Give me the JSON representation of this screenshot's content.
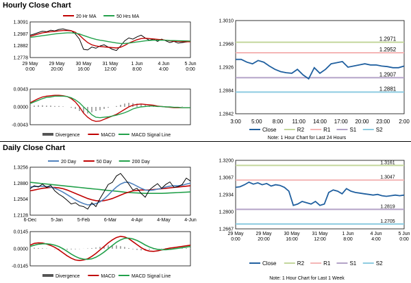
{
  "hourly": {
    "title": "Hourly Close Chart",
    "note": "Note: 1 Hour Chart for Last 24 Hours"
  },
  "daily": {
    "title": "Daily Close Chart",
    "note": "Note: 1 Hour Chart for Last 1 Week"
  },
  "colors": {
    "price": "#000000",
    "ma_short": "#c00000",
    "ma_long": "#22a04a",
    "ma_20day": "#4f81bd",
    "close": "#1f5f9f",
    "r2": "#c3d69b",
    "r1": "#f4b5b5",
    "s1": "#b3a2c7",
    "s2": "#8ccbe0",
    "divergence": "#555555",
    "macd": "#c00000",
    "signal": "#22a04a"
  },
  "chart_data": [
    {
      "id": "hourly_price",
      "type": "line",
      "legend": [
        "20 Hr MA",
        "50 Hrs MA"
      ],
      "yticks": [
        "1.3091",
        "1.2987",
        "1.2882",
        "1.2778"
      ],
      "ylim": [
        1.2778,
        1.3091
      ],
      "xticks": [
        "29 May\n0:00",
        "29 May\n20:00",
        "30 May\n16:00",
        "31 May\n12:00",
        "1 Jun\n8:00",
        "4 Jun\n4:00",
        "5 Jun\n0:00"
      ],
      "series": [
        {
          "name": "Close",
          "values": [
            1.2975,
            1.2985,
            1.2998,
            1.301,
            1.3005,
            1.3018,
            1.3012,
            1.3025,
            1.303,
            1.302,
            1.3015,
            1.2985,
            1.294,
            1.285,
            1.2845,
            1.287,
            1.286,
            1.288,
            1.289,
            1.287,
            1.285,
            1.284,
            1.288,
            1.2925,
            1.295,
            1.294,
            1.296,
            1.2975,
            1.295,
            1.293,
            1.294,
            1.292,
            1.294,
            1.2925,
            1.291,
            1.292,
            1.2905,
            1.291,
            1.2915,
            1.292
          ]
        },
        {
          "name": "20 Hr MA",
          "values": [
            1.2965,
            1.2975,
            1.2985,
            1.2995,
            1.3,
            1.3005,
            1.3008,
            1.3012,
            1.3015,
            1.3015,
            1.3013,
            1.3,
            1.2975,
            1.294,
            1.291,
            1.289,
            1.288,
            1.2875,
            1.2872,
            1.2868,
            1.2865,
            1.2862,
            1.2868,
            1.2885,
            1.2905,
            1.292,
            1.2935,
            1.2945,
            1.2948,
            1.2945,
            1.2942,
            1.2938,
            1.2935,
            1.293,
            1.2925,
            1.2922,
            1.292,
            1.2918,
            1.2917,
            1.2917
          ]
        },
        {
          "name": "50 Hrs MA",
          "values": [
            1.2955,
            1.296,
            1.2965,
            1.297,
            1.2975,
            1.298,
            1.2985,
            1.299,
            1.2992,
            1.2995,
            1.2995,
            1.2992,
            1.2985,
            1.2972,
            1.296,
            1.2948,
            1.2938,
            1.293,
            1.2925,
            1.2918,
            1.2912,
            1.2906,
            1.2902,
            1.2902,
            1.2905,
            1.291,
            1.2915,
            1.292,
            1.2925,
            1.2928,
            1.293,
            1.293,
            1.293,
            1.293,
            1.2928,
            1.2927,
            1.2926,
            1.2925,
            1.2924,
            1.2923
          ]
        }
      ]
    },
    {
      "id": "hourly_macd",
      "type": "line",
      "yticks": [
        "0.0043",
        "0.0000",
        "-0.0043"
      ],
      "ylim": [
        -0.0043,
        0.0043
      ],
      "legend": [
        "Divergence",
        "MACD",
        "MACD Signal Line"
      ],
      "series": [
        {
          "name": "Divergence",
          "values": [
            0.0002,
            0.0003,
            0.0004,
            0.0004,
            0.0003,
            0.0003,
            0.0002,
            0.0002,
            0.0001,
            0.0,
            -0.0002,
            -0.0005,
            -0.001,
            -0.0015,
            -0.0016,
            -0.0013,
            -0.001,
            -0.0008,
            -0.0005,
            -0.0002,
            0.0,
            0.0002,
            0.0005,
            0.0008,
            0.001,
            0.0009,
            0.0008,
            0.0007,
            0.0005,
            0.0003,
            0.0002,
            0.0001,
            0.0,
            0.0,
            -0.0001,
            0.0,
            0.0,
            0.0001,
            0.0,
            0.0
          ]
        },
        {
          "name": "MACD",
          "values": [
            0.001,
            0.0015,
            0.002,
            0.0024,
            0.0026,
            0.0027,
            0.0028,
            0.0028,
            0.0027,
            0.0025,
            0.002,
            0.0012,
            0.0,
            -0.0015,
            -0.0025,
            -0.0032,
            -0.0035,
            -0.0034,
            -0.003,
            -0.0026,
            -0.0022,
            -0.0018,
            -0.0012,
            -0.0006,
            0.0,
            0.0004,
            0.0006,
            0.0007,
            0.0006,
            0.0005,
            0.0004,
            0.0002,
            0.0001,
            0.0,
            -0.0001,
            -0.0002,
            -0.0002,
            -0.0002,
            -0.0002,
            -0.0002
          ]
        },
        {
          "name": "MACD Signal Line",
          "values": [
            0.0008,
            0.0012,
            0.0016,
            0.002,
            0.0023,
            0.0024,
            0.0026,
            0.0026,
            0.0026,
            0.0025,
            0.0022,
            0.0017,
            0.001,
            0.0,
            -0.0009,
            -0.0019,
            -0.0025,
            -0.0026,
            -0.0025,
            -0.0024,
            -0.0022,
            -0.002,
            -0.0017,
            -0.0014,
            -0.001,
            -0.0005,
            -0.0002,
            0.0,
            0.0001,
            0.0002,
            0.0002,
            0.0001,
            0.0001,
            0.0,
            0.0,
            -0.0001,
            -0.0001,
            -0.0002,
            -0.0002,
            -0.0002
          ]
        }
      ]
    },
    {
      "id": "hourly_levels",
      "type": "line",
      "yticks": [
        "1.3010",
        "1.2968",
        "1.2926",
        "1.2884",
        "1.2842"
      ],
      "ylim": [
        1.2842,
        1.301
      ],
      "xticks": [
        "3:00",
        "5:00",
        "8:00",
        "11:00",
        "14:00",
        "17:00",
        "20:00",
        "23:00",
        "2:00"
      ],
      "levels": [
        {
          "name": "R2",
          "value": 1.2971,
          "label": "1.2971"
        },
        {
          "name": "R1",
          "value": 1.2952,
          "label": "1.2952"
        },
        {
          "name": "S1",
          "value": 1.2907,
          "label": "1.2907"
        },
        {
          "name": "S2",
          "value": 1.2881,
          "label": "1.2881"
        }
      ],
      "legend": [
        "Close",
        "R2",
        "R1",
        "S1",
        "S2"
      ],
      "series": [
        {
          "name": "Close",
          "values": [
            1.294,
            1.294,
            1.2935,
            1.2932,
            1.2938,
            1.2935,
            1.2928,
            1.2922,
            1.2918,
            1.2916,
            1.2915,
            1.2922,
            1.2912,
            1.2905,
            1.2925,
            1.2915,
            1.2922,
            1.2932,
            1.2934,
            1.2936,
            1.2926,
            1.2928,
            1.293,
            1.2932,
            1.293,
            1.293,
            1.2928,
            1.2927,
            1.2925,
            1.2925,
            1.2928
          ]
        }
      ]
    },
    {
      "id": "daily_price",
      "type": "line",
      "legend": [
        "20 Day",
        "50 Day",
        "200 Day"
      ],
      "yticks": [
        "1.3256",
        "1.2880",
        "1.2504",
        "1.2128"
      ],
      "ylim": [
        1.2128,
        1.3256
      ],
      "xticks": [
        "6-Dec",
        "5-Jan",
        "5-Feb",
        "6-Mar",
        "4-Apr",
        "4-May",
        "4-Jun"
      ],
      "series": [
        {
          "name": "Close",
          "values": [
            1.275,
            1.282,
            1.279,
            1.286,
            1.278,
            1.283,
            1.27,
            1.262,
            1.256,
            1.248,
            1.239,
            1.242,
            1.235,
            1.233,
            1.227,
            1.242,
            1.233,
            1.252,
            1.268,
            1.285,
            1.29,
            1.305,
            1.311,
            1.299,
            1.286,
            1.272,
            1.276,
            1.264,
            1.255,
            1.272,
            1.28,
            1.287,
            1.276,
            1.285,
            1.291,
            1.278,
            1.28,
            1.285,
            1.3,
            1.293
          ]
        },
        {
          "name": "20 Day",
          "values": [
            1.279,
            1.28,
            1.2805,
            1.281,
            1.28,
            1.279,
            1.276,
            1.272,
            1.267,
            1.261,
            1.255,
            1.249,
            1.244,
            1.24,
            1.237,
            1.238,
            1.24,
            1.244,
            1.251,
            1.26,
            1.27,
            1.279,
            1.286,
            1.29,
            1.29,
            1.286,
            1.281,
            1.276,
            1.272,
            1.271,
            1.272,
            1.274,
            1.276,
            1.279,
            1.281,
            1.282,
            1.282,
            1.283,
            1.286,
            1.288
          ]
        },
        {
          "name": "50 Day",
          "values": [
            1.27,
            1.272,
            1.274,
            1.276,
            1.277,
            1.278,
            1.278,
            1.277,
            1.275,
            1.272,
            1.268,
            1.264,
            1.26,
            1.256,
            1.252,
            1.249,
            1.247,
            1.246,
            1.247,
            1.249,
            1.252,
            1.256,
            1.26,
            1.264,
            1.267,
            1.27,
            1.271,
            1.272,
            1.272,
            1.272,
            1.273,
            1.274,
            1.275,
            1.276,
            1.277,
            1.278,
            1.279,
            1.28,
            1.281,
            1.282
          ]
        },
        {
          "name": "200 Day",
          "values": [
            1.29,
            1.289,
            1.288,
            1.287,
            1.286,
            1.285,
            1.284,
            1.283,
            1.282,
            1.281,
            1.28,
            1.279,
            1.278,
            1.277,
            1.276,
            1.275,
            1.274,
            1.273,
            1.272,
            1.271,
            1.27,
            1.269,
            1.268,
            1.267,
            1.266,
            1.2655,
            1.265,
            1.2645,
            1.264,
            1.264,
            1.264,
            1.264,
            1.264,
            1.2645,
            1.265,
            1.2655,
            1.266,
            1.2665,
            1.267,
            1.2675
          ]
        }
      ]
    },
    {
      "id": "daily_macd",
      "type": "line",
      "yticks": [
        "0.0145",
        "0.0000",
        "-0.0145"
      ],
      "ylim": [
        -0.0145,
        0.0145
      ],
      "legend": [
        "Divergence",
        "MACD",
        "MACD Signal Line"
      ],
      "series": [
        {
          "name": "Divergence",
          "values": [
            0.0005,
            0.0008,
            0.0006,
            0.0004,
            0.0002,
            -0.0001,
            -0.0003,
            -0.0005,
            -0.0007,
            -0.0008,
            -0.0006,
            -0.0004,
            -0.0002,
            0.0001,
            0.0003,
            0.0006,
            0.001,
            0.0015,
            0.0022,
            0.0028,
            0.003,
            0.0028,
            0.0022,
            0.0015,
            0.0006,
            -0.0004,
            -0.001,
            -0.0014,
            -0.0012,
            -0.0008,
            -0.0004,
            0.0,
            0.0002,
            0.0004,
            0.0005,
            0.0006,
            0.0005,
            0.0004,
            0.0005,
            0.0006
          ]
        },
        {
          "name": "MACD",
          "values": [
            0.003,
            0.0045,
            0.005,
            0.0048,
            0.004,
            0.0028,
            0.0012,
            -0.001,
            -0.0035,
            -0.006,
            -0.008,
            -0.0095,
            -0.01,
            -0.0095,
            -0.0085,
            -0.0065,
            -0.004,
            -0.001,
            0.002,
            0.005,
            0.0075,
            0.0095,
            0.0105,
            0.01,
            0.0085,
            0.006,
            0.0035,
            0.001,
            -0.001,
            -0.002,
            -0.0022,
            -0.0018,
            -0.001,
            -0.0002,
            0.0005,
            0.001,
            0.0015,
            0.002,
            0.0025,
            0.003
          ]
        },
        {
          "name": "MACD Signal Line",
          "values": [
            0.002,
            0.003,
            0.0038,
            0.0042,
            0.0042,
            0.0038,
            0.003,
            0.0018,
            0.0,
            -0.0022,
            -0.0045,
            -0.0065,
            -0.008,
            -0.0088,
            -0.009,
            -0.0085,
            -0.0072,
            -0.0052,
            -0.0028,
            0.0,
            0.0028,
            0.0055,
            0.0075,
            0.0088,
            0.009,
            0.0083,
            0.007,
            0.0052,
            0.0032,
            0.0015,
            0.0003,
            -0.0005,
            -0.0008,
            -0.0008,
            -0.0005,
            -0.0001,
            0.0004,
            0.0009,
            0.0014,
            0.0019
          ]
        }
      ]
    },
    {
      "id": "daily_levels",
      "type": "line",
      "yticks": [
        "1.3200",
        "1.3067",
        "1.2934",
        "1.2800",
        "1.2667"
      ],
      "ylim": [
        1.2667,
        1.32
      ],
      "xticks": [
        "29 May\n0:00",
        "29 May\n20:00",
        "30 May\n16:00",
        "31 May\n12:00",
        "1 Jun\n8:00",
        "4 Jun\n4:00",
        "5 Jun\n0:00"
      ],
      "levels": [
        {
          "name": "R2",
          "value": 1.3161,
          "label": "1.3161"
        },
        {
          "name": "R1",
          "value": 1.3047,
          "label": "1.3047"
        },
        {
          "name": "S1",
          "value": 1.2819,
          "label": "1.2819"
        },
        {
          "name": "S2",
          "value": 1.2705,
          "label": "1.2705"
        }
      ],
      "legend": [
        "Close",
        "R2",
        "R1",
        "S1",
        "S2"
      ],
      "series": [
        {
          "name": "Close",
          "values": [
            1.299,
            1.2995,
            1.301,
            1.303,
            1.3015,
            1.3025,
            1.301,
            1.302,
            1.3,
            1.301,
            1.3005,
            1.299,
            1.296,
            1.285,
            1.286,
            1.288,
            1.287,
            1.286,
            1.288,
            1.285,
            1.286,
            1.295,
            1.297,
            1.296,
            1.294,
            1.298,
            1.296,
            1.295,
            1.2945,
            1.294,
            1.2935,
            1.293,
            1.2935,
            1.2925,
            1.292,
            1.2925,
            1.293,
            1.2925,
            1.293
          ]
        }
      ]
    }
  ]
}
